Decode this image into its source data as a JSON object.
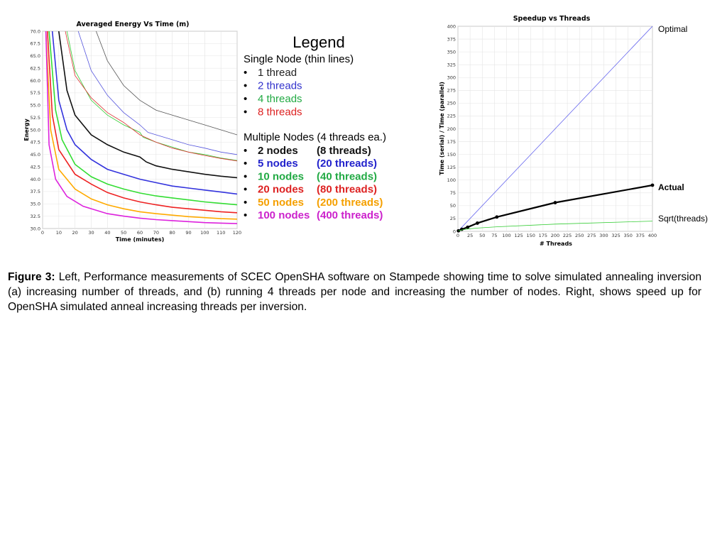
{
  "chart_data": [
    {
      "type": "line",
      "title": "Averaged Energy Vs Time (m)",
      "xlabel": "Time (minutes)",
      "ylabel": "Energy",
      "xlim": [
        0,
        120
      ],
      "ylim": [
        30,
        70
      ],
      "x_ticks": [
        0,
        10,
        20,
        30,
        40,
        50,
        60,
        70,
        80,
        90,
        100,
        110,
        120
      ],
      "y_ticks": [
        "70.0",
        "67.5",
        "65.0",
        "62.5",
        "60.0",
        "57.5",
        "55.0",
        "52.5",
        "50.0",
        "47.5",
        "45.0",
        "42.5",
        "40.0",
        "37.5",
        "35.0",
        "32.5",
        "30.0"
      ],
      "grid": true,
      "series": [
        {
          "name": "1 thread",
          "color": "#555555",
          "width": 0.8,
          "points": [
            [
              33,
              70
            ],
            [
              40,
              64
            ],
            [
              50,
              59
            ],
            [
              60,
              56
            ],
            [
              70,
              54
            ],
            [
              80,
              53
            ],
            [
              90,
              52
            ],
            [
              100,
              51
            ],
            [
              110,
              50
            ],
            [
              120,
              49
            ]
          ]
        },
        {
          "name": "2 threads",
          "color": "#5555dd",
          "width": 0.8,
          "points": [
            [
              22,
              70
            ],
            [
              30,
              62
            ],
            [
              40,
              57
            ],
            [
              50,
              53.5
            ],
            [
              60,
              51
            ],
            [
              65,
              49.5
            ],
            [
              70,
              49
            ],
            [
              80,
              48
            ],
            [
              90,
              47
            ],
            [
              100,
              46.3
            ],
            [
              110,
              45.5
            ],
            [
              120,
              45
            ]
          ]
        },
        {
          "name": "4 threads",
          "color": "#33cc33",
          "width": 0.8,
          "points": [
            [
              15,
              70
            ],
            [
              20,
              62
            ],
            [
              30,
              56
            ],
            [
              40,
              53
            ],
            [
              50,
              51
            ],
            [
              60,
              49.5
            ],
            [
              62,
              48.5
            ],
            [
              70,
              47.5
            ],
            [
              80,
              46.5
            ],
            [
              90,
              45.5
            ],
            [
              100,
              45
            ],
            [
              110,
              44.3
            ],
            [
              120,
              43.8
            ]
          ]
        },
        {
          "name": "8 threads",
          "color": "#dd3333",
          "width": 0.8,
          "points": [
            [
              14,
              70
            ],
            [
              20,
              61
            ],
            [
              30,
              56.5
            ],
            [
              40,
              53.5
            ],
            [
              50,
              51.5
            ],
            [
              60,
              49
            ],
            [
              70,
              47.5
            ],
            [
              80,
              46.3
            ],
            [
              90,
              45.5
            ],
            [
              100,
              44.8
            ],
            [
              110,
              44.2
            ],
            [
              120,
              43.7
            ]
          ]
        },
        {
          "name": "2 nodes",
          "color": "#111111",
          "width": 1.6,
          "points": [
            [
              10,
              70
            ],
            [
              15,
              58
            ],
            [
              20,
              53
            ],
            [
              30,
              49
            ],
            [
              40,
              47
            ],
            [
              50,
              45.5
            ],
            [
              60,
              44.5
            ],
            [
              64,
              43.5
            ],
            [
              70,
              42.7
            ],
            [
              80,
              42
            ],
            [
              90,
              41.5
            ],
            [
              100,
              41
            ],
            [
              110,
              40.6
            ],
            [
              120,
              40.3
            ]
          ]
        },
        {
          "name": "5 nodes",
          "color": "#3333dd",
          "width": 1.6,
          "points": [
            [
              6,
              70
            ],
            [
              10,
              56
            ],
            [
              15,
              50
            ],
            [
              20,
              47
            ],
            [
              30,
              44
            ],
            [
              40,
              42
            ],
            [
              50,
              41
            ],
            [
              60,
              40
            ],
            [
              70,
              39.3
            ],
            [
              80,
              38.6
            ],
            [
              90,
              38.2
            ],
            [
              100,
              37.8
            ],
            [
              110,
              37.4
            ],
            [
              120,
              37
            ]
          ]
        },
        {
          "name": "10 nodes",
          "color": "#33dd33",
          "width": 1.6,
          "points": [
            [
              4,
              70
            ],
            [
              8,
              54
            ],
            [
              12,
              48
            ],
            [
              20,
              43
            ],
            [
              30,
              40.5
            ],
            [
              40,
              39
            ],
            [
              50,
              38
            ],
            [
              60,
              37.2
            ],
            [
              70,
              36.6
            ],
            [
              80,
              36.2
            ],
            [
              90,
              35.8
            ],
            [
              100,
              35.4
            ],
            [
              110,
              35.1
            ],
            [
              120,
              34.8
            ]
          ]
        },
        {
          "name": "20 nodes",
          "color": "#ee2222",
          "width": 1.6,
          "points": [
            [
              3,
              70
            ],
            [
              6,
              53
            ],
            [
              10,
              46
            ],
            [
              20,
              41
            ],
            [
              30,
              39
            ],
            [
              40,
              37.3
            ],
            [
              50,
              36.2
            ],
            [
              60,
              35.4
            ],
            [
              70,
              34.8
            ],
            [
              80,
              34.3
            ],
            [
              90,
              34
            ],
            [
              100,
              33.7
            ],
            [
              110,
              33.4
            ],
            [
              120,
              33.2
            ]
          ]
        },
        {
          "name": "50 nodes",
          "color": "#ffaa00",
          "width": 1.6,
          "points": [
            [
              2,
              70
            ],
            [
              5,
              50
            ],
            [
              10,
              42
            ],
            [
              20,
              38
            ],
            [
              30,
              36
            ],
            [
              40,
              34.8
            ],
            [
              50,
              34
            ],
            [
              60,
              33.4
            ],
            [
              70,
              33
            ],
            [
              80,
              32.7
            ],
            [
              90,
              32.4
            ],
            [
              100,
              32.2
            ],
            [
              110,
              32
            ],
            [
              120,
              31.9
            ]
          ]
        },
        {
          "name": "100 nodes",
          "color": "#dd22dd",
          "width": 1.6,
          "points": [
            [
              2,
              70
            ],
            [
              4,
              47
            ],
            [
              8,
              40
            ],
            [
              15,
              36.5
            ],
            [
              25,
              34.5
            ],
            [
              40,
              33
            ],
            [
              50,
              32.5
            ],
            [
              60,
              32.1
            ],
            [
              70,
              31.8
            ],
            [
              80,
              31.6
            ],
            [
              90,
              31.4
            ],
            [
              100,
              31.2
            ],
            [
              110,
              31.1
            ],
            [
              120,
              31
            ]
          ]
        }
      ]
    },
    {
      "type": "line",
      "title": "Speedup vs Threads",
      "xlabel": "# Threads",
      "ylabel": "Time (serial) / Time (parallel)",
      "xlim": [
        0,
        400
      ],
      "ylim": [
        0,
        400
      ],
      "x_ticks": [
        0,
        25,
        50,
        75,
        100,
        125,
        150,
        175,
        200,
        225,
        250,
        275,
        300,
        325,
        350,
        375,
        400
      ],
      "y_ticks": [
        0,
        25,
        50,
        75,
        100,
        125,
        150,
        175,
        200,
        225,
        250,
        275,
        300,
        325,
        350,
        375,
        400
      ],
      "grid": true,
      "series": [
        {
          "name": "Optimal",
          "color": "#6666ee",
          "width": 0.8,
          "markers": false,
          "points": [
            [
              0,
              0
            ],
            [
              400,
              400
            ]
          ]
        },
        {
          "name": "Actual",
          "color": "#000000",
          "width": 2.2,
          "markers": true,
          "points": [
            [
              1,
              1
            ],
            [
              8,
              4
            ],
            [
              20,
              8
            ],
            [
              40,
              16
            ],
            [
              80,
              28
            ],
            [
              200,
              56
            ],
            [
              400,
              90
            ]
          ]
        },
        {
          "name": "Sqrt(threads)",
          "color": "#33cc33",
          "width": 0.8,
          "markers": false,
          "points": [
            [
              1,
              1
            ],
            [
              8,
              2.8
            ],
            [
              20,
              4.5
            ],
            [
              40,
              6.3
            ],
            [
              80,
              8.9
            ],
            [
              200,
              14.1
            ],
            [
              400,
              20
            ]
          ]
        }
      ]
    }
  ],
  "legend": {
    "title": "Legend",
    "single_header": "Single Node (thin lines)",
    "single_items": [
      {
        "label": "1 thread",
        "color": "#222222"
      },
      {
        "label": "2 threads",
        "color": "#3333cc"
      },
      {
        "label": "4 threads",
        "color": "#22aa44"
      },
      {
        "label": "8 threads",
        "color": "#dd2222"
      }
    ],
    "multi_header": "Multiple Nodes (4 threads ea.)",
    "multi_items": [
      {
        "nodes": "2 nodes",
        "threads": "(8 threads)",
        "color": "#111111"
      },
      {
        "nodes": "5 nodes",
        "threads": "(20 threads)",
        "color": "#2222cc"
      },
      {
        "nodes": "10 nodes",
        "threads": "(40 threads)",
        "color": "#22aa44"
      },
      {
        "nodes": "20 nodes",
        "threads": "(80 threads)",
        "color": "#dd2222"
      },
      {
        "nodes": "50 nodes",
        "threads": "(200 threads)",
        "color": "#f5a000"
      },
      {
        "nodes": "100 nodes",
        "threads": "(400 threads)",
        "color": "#cc22cc"
      }
    ],
    "bullet": "•"
  },
  "caption": {
    "label": "Figure 3:",
    "text": " Left, Performance measurements of SCEC OpenSHA software on Stampede showing time to solve simulated annealing inversion (a) increasing number of threads, and (b) running 4 threads per node and increasing the number of nodes. Right, shows speed up for OpenSHA simulated anneal increasing threads per inversion."
  }
}
